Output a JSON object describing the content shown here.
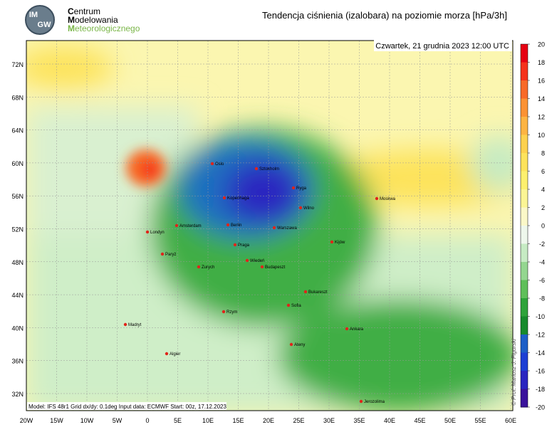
{
  "header": {
    "logo": [
      "IM",
      "GW"
    ],
    "org": [
      "Centrum",
      "Modelowania",
      "Meteorologicznego"
    ],
    "title": "Tendencja ciśnienia (izalobara) na poziomie morza  [hPa/3h]"
  },
  "map": {
    "date": "Czwartek, 21 grudnia 2023 12:00 UTC",
    "lat_labels": [
      "72N",
      "68N",
      "64N",
      "60N",
      "56N",
      "52N",
      "48N",
      "44N",
      "40N",
      "36N",
      "32N"
    ],
    "lon_labels": [
      "20W",
      "15W",
      "10W",
      "5W",
      "0",
      "5E",
      "10E",
      "15E",
      "20E",
      "25E",
      "30E",
      "35E",
      "40E",
      "45E",
      "50E",
      "55E",
      "60E"
    ],
    "cities": [
      "Oslo",
      "Sztokholm",
      "Ryga",
      "Kopenhaga",
      "Wilno",
      "Moskwa",
      "Londyn",
      "Amsterdam",
      "Berlin",
      "Warszawa",
      "Kijów",
      "Paryż",
      "Praga",
      "Wiedeń",
      "Budapeszt",
      "Zurych",
      "Rzym",
      "Bukareszt",
      "Sofia",
      "Madryt",
      "Ankara",
      "Ateny",
      "Algier",
      "Jerozolima"
    ],
    "footer": "Model: IFS 48r1  Grid dx/dy: 0.1deg  Input data: ECMWF  Start: 00z, 17.12.2023",
    "copyright": "© Prof. Mariusz J. Figurski"
  },
  "colorbar": {
    "ticks": [
      20,
      18,
      16,
      14,
      12,
      10,
      8,
      6,
      4,
      2,
      0,
      -2,
      -4,
      -6,
      -8,
      -10,
      -12,
      -14,
      -16,
      -18,
      -20
    ],
    "colors": [
      "#e60012",
      "#f5321c",
      "#f86a28",
      "#fb9234",
      "#fdb442",
      "#fdd14e",
      "#fde35c",
      "#fdf06e",
      "#fbf595",
      "#fbf8c8",
      "#eef7ec",
      "#c6ebc3",
      "#94d690",
      "#5fbf5a",
      "#2ea33a",
      "#178a2c",
      "#1d5fc7",
      "#1d3fd4",
      "#2a25c0",
      "#3a129c"
    ]
  }
}
